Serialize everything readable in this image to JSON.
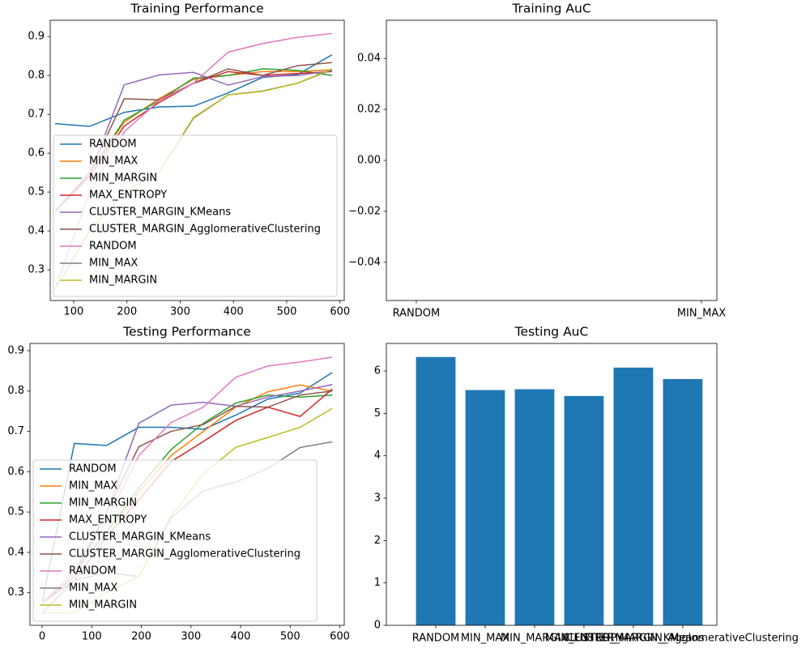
{
  "chart_data": [
    {
      "type": "line",
      "title": "Training Performance",
      "x": [
        65,
        130,
        195,
        260,
        325,
        390,
        455,
        520,
        585
      ],
      "xlim": [
        56,
        608
      ],
      "xticks": [
        100,
        200,
        300,
        400,
        500,
        600
      ],
      "ylim": [
        0.221,
        0.942
      ],
      "yticks": [
        0.3,
        0.4,
        0.5,
        0.6,
        0.7,
        0.8,
        0.9
      ],
      "legend": "lower left",
      "series": [
        {
          "name": "RANDOM",
          "color": "#1f77b4",
          "values": [
            0.676,
            0.669,
            0.705,
            0.719,
            0.721,
            0.755,
            0.795,
            0.802,
            0.853
          ]
        },
        {
          "name": "MIN_MAX",
          "color": "#ff7f0e",
          "values": [
            0.45,
            0.55,
            0.68,
            0.74,
            0.79,
            0.8,
            0.81,
            0.81,
            0.815
          ]
        },
        {
          "name": "MIN_MARGIN",
          "color": "#2ca02c",
          "values": [
            0.45,
            0.55,
            0.685,
            0.735,
            0.793,
            0.8,
            0.817,
            0.813,
            0.8
          ]
        },
        {
          "name": "MAX_ENTROPY",
          "color": "#d62728",
          "values": [
            0.45,
            0.54,
            0.67,
            0.73,
            0.78,
            0.81,
            0.8,
            0.805,
            0.81
          ]
        },
        {
          "name": "CLUSTER_MARGIN_KMeans",
          "color": "#9467bd",
          "values": [
            0.45,
            0.545,
            0.776,
            0.801,
            0.808,
            0.775,
            0.797,
            0.8,
            0.812
          ]
        },
        {
          "name": "CLUSTER_MARGIN_AgglomerativeClustering",
          "color": "#8c564b",
          "values": [
            0.45,
            0.55,
            0.74,
            0.737,
            0.78,
            0.817,
            0.8,
            0.825,
            0.833
          ]
        },
        {
          "name": "RANDOM",
          "color": "#e377c2",
          "values": [
            0.25,
            0.5,
            0.655,
            0.735,
            0.78,
            0.86,
            0.882,
            0.898,
            0.908
          ]
        },
        {
          "name": "MIN_MAX",
          "color": "#7f7f7f",
          "values": [
            0.25,
            0.4,
            0.5,
            0.55,
            0.69,
            0.75,
            0.76,
            0.78,
            0.815
          ]
        },
        {
          "name": "MIN_MARGIN",
          "color": "#bcbd22",
          "values": [
            0.25,
            0.4,
            0.5,
            0.55,
            0.692,
            0.75,
            0.759,
            0.78,
            0.817
          ]
        }
      ]
    },
    {
      "type": "bar",
      "title": "Training AuC",
      "categories": [
        "RANDOM",
        "MIN_MAX"
      ],
      "xlim": [
        -0.105,
        1.054
      ],
      "ylim": [
        -0.055,
        0.055
      ],
      "yticks": [
        {
          "value": -0.04,
          "label": "−0.04"
        },
        {
          "value": -0.02,
          "label": "−0.02"
        },
        {
          "value": 0,
          "label": "0.00"
        },
        {
          "value": 0.02,
          "label": "0.02"
        },
        {
          "value": 0.04,
          "label": "0.04"
        }
      ],
      "color": "#1f77b4"
    },
    {
      "type": "line",
      "title": "Testing Performance",
      "x": [
        0,
        65,
        130,
        195,
        260,
        325,
        390,
        455,
        520,
        585
      ],
      "xlim": [
        -24.5,
        609
      ],
      "xticks": [
        0,
        100,
        200,
        300,
        400,
        500,
        600
      ],
      "ylim": [
        0.219,
        0.918
      ],
      "yticks": [
        0.3,
        0.4,
        0.5,
        0.6,
        0.7,
        0.8,
        0.9
      ],
      "legend": "lower left",
      "series": [
        {
          "name": "RANDOM",
          "color": "#1f77b4",
          "values": [
            0.275,
            0.67,
            0.665,
            0.71,
            0.71,
            0.705,
            0.74,
            0.78,
            0.795,
            0.846
          ]
        },
        {
          "name": "MIN_MAX",
          "color": "#ff7f0e",
          "values": [
            0.275,
            0.35,
            0.45,
            0.55,
            0.64,
            0.7,
            0.76,
            0.798,
            0.815,
            0.8
          ]
        },
        {
          "name": "MIN_MARGIN",
          "color": "#2ca02c",
          "values": [
            0.275,
            0.35,
            0.45,
            0.56,
            0.655,
            0.72,
            0.77,
            0.79,
            0.785,
            0.79
          ]
        },
        {
          "name": "MAX_ENTROPY",
          "color": "#d62728",
          "values": [
            0.275,
            0.33,
            0.44,
            0.53,
            0.625,
            0.675,
            0.727,
            0.76,
            0.737,
            0.805
          ]
        },
        {
          "name": "CLUSTER_MARGIN_KMeans",
          "color": "#9467bd",
          "values": [
            0.275,
            0.35,
            0.5,
            0.72,
            0.765,
            0.772,
            0.762,
            0.785,
            0.8,
            0.816
          ]
        },
        {
          "name": "CLUSTER_MARGIN_AgglomerativeClustering",
          "color": "#8c564b",
          "values": [
            0.275,
            0.34,
            0.5,
            0.662,
            0.7,
            0.717,
            0.762,
            0.76,
            0.79,
            0.8
          ]
        },
        {
          "name": "RANDOM",
          "color": "#e377c2",
          "values": [
            0.275,
            0.35,
            0.48,
            0.64,
            0.722,
            0.76,
            0.834,
            0.862,
            0.872,
            0.884
          ]
        },
        {
          "name": "MIN_MAX",
          "color": "#7f7f7f",
          "values": [
            0.25,
            0.33,
            0.35,
            0.34,
            0.485,
            0.553,
            0.574,
            0.608,
            0.66,
            0.674
          ]
        },
        {
          "name": "MIN_MARGIN",
          "color": "#bcbd22",
          "values": [
            0.25,
            0.25,
            0.3,
            0.34,
            0.49,
            0.595,
            0.66,
            0.685,
            0.71,
            0.757
          ]
        }
      ]
    },
    {
      "type": "bar",
      "title": "Testing AuC",
      "categories": [
        "RANDOM",
        "MIN_MAX",
        "MIN_MARGIN",
        "MAX_ENTROPY",
        "CLUSTER_MARGIN_KMeans",
        "CLUSTER_MARGIN_AgglomerativeClustering"
      ],
      "values": [
        6.33,
        5.55,
        5.57,
        5.41,
        6.08,
        5.81
      ],
      "xlim": [
        -1.0,
        5.69
      ],
      "ylim": [
        0,
        6.65
      ],
      "yticks": [
        0,
        1,
        2,
        3,
        4,
        5,
        6
      ],
      "color": "#1f77b4"
    }
  ]
}
